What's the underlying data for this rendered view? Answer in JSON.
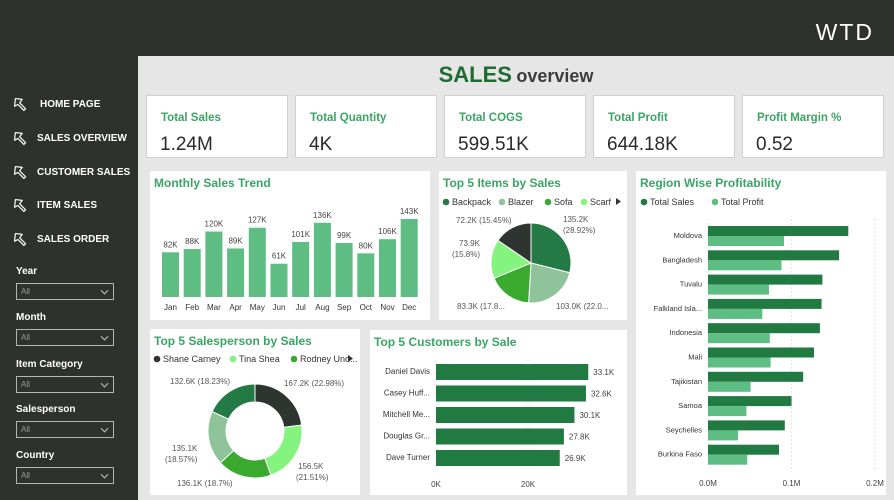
{
  "brand": "WTD",
  "title": {
    "main": "SALES",
    "sub": "overview"
  },
  "nav": [
    {
      "label": "HOME PAGE",
      "icon": "home-icon"
    },
    {
      "label": "SALES OVERVIEW",
      "icon": "sales-overview-icon"
    },
    {
      "label": "CUSTOMER SALES",
      "icon": "customer-sales-icon"
    },
    {
      "label": "ITEM SALES",
      "icon": "item-sales-icon"
    },
    {
      "label": "SALES ORDER",
      "icon": "sales-order-icon"
    }
  ],
  "filters": [
    {
      "label": "Year",
      "value": "All"
    },
    {
      "label": "Month",
      "value": "All"
    },
    {
      "label": "Item Category",
      "value": "All"
    },
    {
      "label": "Salesperson",
      "value": "All"
    },
    {
      "label": "Country",
      "value": "All"
    }
  ],
  "kpis": [
    {
      "label": "Total Sales",
      "value": "1.24M"
    },
    {
      "label": "Total Quantity",
      "value": "4K"
    },
    {
      "label": "Total COGS",
      "value": "599.51K"
    },
    {
      "label": "Total Profit",
      "value": "644.18K"
    },
    {
      "label": "Profit Margin %",
      "value": "0.52"
    }
  ],
  "colors": {
    "accent": "#3aa564",
    "dark_bar": "#2f312f",
    "title_green": "#1e6b33"
  },
  "chart_data": [
    {
      "type": "bar",
      "title": "Monthly Sales Trend",
      "categories": [
        "Jan",
        "Feb",
        "Mar",
        "Apr",
        "May",
        "Jun",
        "Jul",
        "Aug",
        "Sep",
        "Oct",
        "Nov",
        "Dec"
      ],
      "values": [
        82,
        88,
        120,
        89,
        127,
        61,
        101,
        136,
        99,
        80,
        106,
        143
      ],
      "labels": [
        "82K",
        "88K",
        "120K",
        "89K",
        "127K",
        "61K",
        "101K",
        "136K",
        "99K",
        "80K",
        "106K",
        "143K"
      ],
      "color": "#5dbd82"
    },
    {
      "type": "pie",
      "title": "Top 5 Items by Sales",
      "legend": [
        "Backpack",
        "Blazer",
        "Sofa",
        "Scarf"
      ],
      "series": [
        {
          "name": "Backpack",
          "value": 135.2,
          "color": "#247a45"
        },
        {
          "name": "Blazer",
          "value": 103.0,
          "color": "#8fc49a"
        },
        {
          "name": "Sofa",
          "value": 83.3,
          "color": "#3aaa2e"
        },
        {
          "name": "Scarf",
          "value": 73.9,
          "color": "#85f47e"
        },
        {
          "name": "",
          "value": 72.2,
          "color": "#2e3430"
        }
      ],
      "labels": [
        "135.2K",
        "(28.92%)",
        "103.0K (22.0...",
        "83.3K (17.8...",
        "73.9K",
        "(15.8%)",
        "72.2K (15.45%)"
      ]
    },
    {
      "type": "bar",
      "title": "Region Wise Profitability",
      "legend": [
        "Total Sales",
        "Total Profit"
      ],
      "categories": [
        "Moldova",
        "Bangladesh",
        "Tuvalu",
        "Falkland Isla...",
        "Indonesia",
        "Mali",
        "Tajikistan",
        "Samoa",
        "Seychelles",
        "Burkina Faso"
      ],
      "series": [
        {
          "name": "Total Sales",
          "values": [
            0.168,
            0.157,
            0.137,
            0.136,
            0.134,
            0.127,
            0.114,
            0.1,
            0.092,
            0.085
          ],
          "color": "#217a42"
        },
        {
          "name": "Total Profit",
          "values": [
            0.091,
            0.088,
            0.073,
            0.065,
            0.074,
            0.075,
            0.051,
            0.046,
            0.036,
            0.047
          ],
          "color": "#5dbd82"
        }
      ],
      "xticks": [
        "0.0M",
        "0.1M",
        "0.2M"
      ],
      "xlim": [
        0,
        0.2
      ]
    },
    {
      "type": "pie",
      "title": "Top 5 Salesperson by Sales",
      "legend": [
        "Shane Carney",
        "Tina Shea",
        "Rodney Und..."
      ],
      "series": [
        {
          "name": "Shane Carney",
          "value": 167.2,
          "color": "#2e3430"
        },
        {
          "name": "Tina Shea",
          "value": 156.5,
          "color": "#85f47e"
        },
        {
          "name": "Rodney Und...",
          "value": 136.1,
          "color": "#3aaa2e"
        },
        {
          "name": "",
          "value": 135.1,
          "color": "#8fc49a"
        },
        {
          "name": "",
          "value": 132.6,
          "color": "#247a45"
        }
      ],
      "labels": [
        "167.2K (22.98%)",
        "156.5K",
        "(21.51%)",
        "136.1K (18.7%)",
        "135.1K",
        "(18.57%)",
        "132.6K (18.23%)"
      ]
    },
    {
      "type": "bar",
      "title": "Top 5 Customers by Sale",
      "categories": [
        "Daniel Davis",
        "Casey Huff...",
        "Mitchell Me...",
        "Douglas Gr...",
        "Dave Turner"
      ],
      "values": [
        33.1,
        32.6,
        30.1,
        27.8,
        26.9
      ],
      "labels": [
        "33.1K",
        "32.6K",
        "30.1K",
        "27.8K",
        "26.9K"
      ],
      "xticks": [
        "0K",
        "20K"
      ],
      "xlim": [
        0,
        40
      ],
      "color": "#217a42"
    }
  ]
}
